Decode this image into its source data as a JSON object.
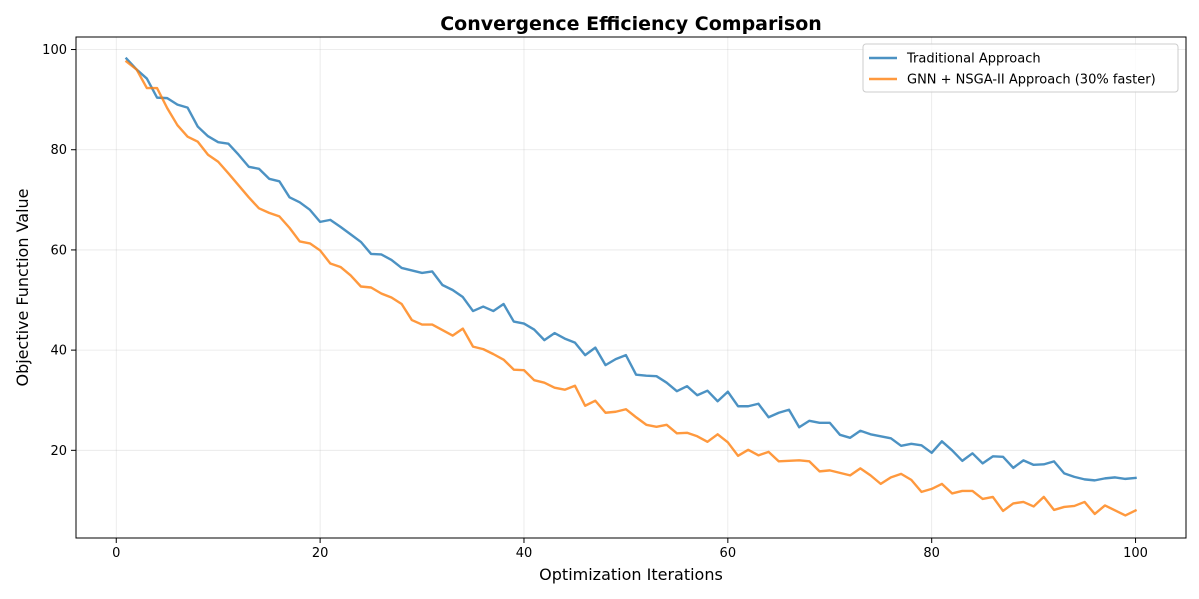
{
  "chart_data": {
    "type": "line",
    "title": "Convergence Efficiency Comparison",
    "xlabel": "Optimization Iterations",
    "ylabel": "Objective Function Value",
    "xlim": [
      -3.95,
      104.95
    ],
    "ylim": [
      2.5,
      102.5
    ],
    "xticks": [
      0,
      20,
      40,
      60,
      80,
      100
    ],
    "yticks": [
      20,
      40,
      60,
      80,
      100
    ],
    "grid": true,
    "legend_position": "top-right",
    "x": [
      1,
      2,
      3,
      4,
      5,
      6,
      7,
      8,
      9,
      10,
      11,
      12,
      13,
      14,
      15,
      16,
      17,
      18,
      19,
      20,
      21,
      22,
      23,
      24,
      25,
      26,
      27,
      28,
      29,
      30,
      31,
      32,
      33,
      34,
      35,
      36,
      37,
      38,
      39,
      40,
      41,
      42,
      43,
      44,
      45,
      46,
      47,
      48,
      49,
      50,
      51,
      52,
      53,
      54,
      55,
      56,
      57,
      58,
      59,
      60,
      61,
      62,
      63,
      64,
      65,
      66,
      67,
      68,
      69,
      70,
      71,
      72,
      73,
      74,
      75,
      76,
      77,
      78,
      79,
      80,
      81,
      82,
      83,
      84,
      85,
      86,
      87,
      88,
      89,
      90,
      91,
      92,
      93,
      94,
      95,
      96,
      97,
      98,
      99,
      100
    ],
    "series": [
      {
        "name": "Traditional Approach",
        "color": "#1f77b4",
        "values": [
          98.2,
          96.0,
          94.2,
          90.4,
          90.3,
          89.0,
          88.4,
          84.6,
          82.7,
          81.5,
          81.2,
          79.0,
          76.6,
          76.2,
          74.2,
          73.7,
          70.5,
          69.5,
          68.0,
          65.6,
          66.0,
          64.6,
          63.1,
          61.6,
          59.2,
          59.1,
          58.0,
          56.4,
          55.9,
          55.4,
          55.7,
          53.0,
          52.0,
          50.6,
          47.8,
          48.7,
          47.8,
          49.2,
          45.7,
          45.3,
          44.1,
          42.0,
          43.4,
          42.3,
          41.5,
          39.0,
          40.5,
          37.0,
          38.2,
          39.0,
          35.1,
          34.9,
          34.8,
          33.5,
          31.8,
          32.8,
          31.0,
          31.9,
          29.8,
          31.7,
          28.8,
          28.8,
          29.3,
          26.6,
          27.5,
          28.1,
          24.6,
          25.9,
          25.5,
          25.5,
          23.1,
          22.5,
          23.9,
          23.2,
          22.8,
          22.4,
          20.9,
          21.3,
          21.0,
          19.5,
          21.8,
          20.0,
          17.9,
          19.4,
          17.4,
          18.8,
          18.7,
          16.5,
          18.0,
          17.1,
          17.2,
          17.8,
          15.4,
          14.7,
          14.2,
          14.0,
          14.4,
          14.6,
          14.3,
          14.5
        ]
      },
      {
        "name": "GNN + NSGA-II Approach (30% faster)",
        "color": "#ff7f0e",
        "values": [
          97.6,
          96.0,
          92.3,
          92.3,
          88.3,
          84.9,
          82.6,
          81.6,
          79.0,
          77.6,
          75.3,
          72.9,
          70.5,
          68.3,
          67.4,
          66.7,
          64.4,
          61.7,
          61.3,
          59.9,
          57.3,
          56.6,
          54.9,
          52.7,
          52.5,
          51.3,
          50.5,
          49.2,
          46.0,
          45.1,
          45.1,
          44.0,
          42.9,
          44.3,
          40.7,
          40.2,
          39.2,
          38.1,
          36.1,
          36.0,
          34.0,
          33.5,
          32.5,
          32.1,
          32.9,
          28.9,
          29.9,
          27.5,
          27.7,
          28.2,
          26.6,
          25.1,
          24.7,
          25.1,
          23.4,
          23.5,
          22.8,
          21.7,
          23.2,
          21.6,
          18.9,
          20.1,
          19.0,
          19.7,
          17.8,
          17.9,
          18.0,
          17.8,
          15.8,
          16.0,
          15.5,
          15.0,
          16.4,
          15.0,
          13.3,
          14.6,
          15.3,
          14.1,
          11.7,
          12.3,
          13.3,
          11.4,
          11.9,
          11.9,
          10.3,
          10.7,
          7.9,
          9.4,
          9.7,
          8.8,
          10.7,
          8.1,
          8.7,
          8.9,
          9.7,
          7.3,
          9.0,
          8.0,
          7.0,
          8.0
        ]
      }
    ]
  }
}
